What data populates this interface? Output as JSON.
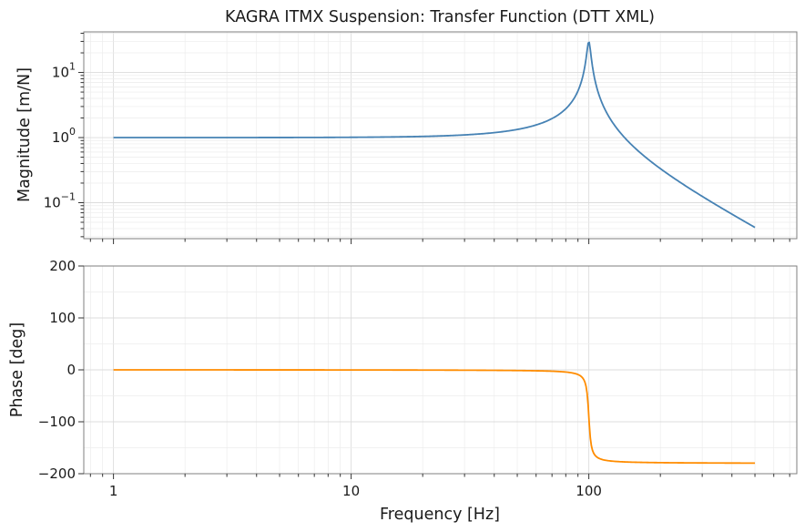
{
  "figure": {
    "title": "KAGRA ITMX Suspension: Transfer Function (DTT XML)"
  },
  "chart_data": [
    {
      "type": "line",
      "panel": "magnitude",
      "title": "KAGRA ITMX Suspension: Transfer Function (DTT XML)",
      "xlabel": "",
      "ylabel": "Magnitude [m/N]",
      "xscale": "log",
      "yscale": "log",
      "xlim": [
        0.75,
        750
      ],
      "ylim": [
        0.028,
        42
      ],
      "yticks": [
        {
          "value": 0.1,
          "base": "10",
          "exp": "−1"
        },
        {
          "value": 1,
          "base": "10",
          "exp": "0"
        },
        {
          "value": 10,
          "base": "10",
          "exp": "1"
        }
      ],
      "grid": true,
      "color": "#4682b4",
      "model": {
        "f0": 100,
        "Q": 30,
        "fmin": 1,
        "fmax": 500
      },
      "series": [
        {
          "values": [
            [
              1,
              1.0
            ],
            [
              2,
              1.0
            ],
            [
              5,
              1.0025
            ],
            [
              10,
              1.0101
            ],
            [
              20,
              1.0417
            ],
            [
              30,
              1.0989
            ],
            [
              50,
              1.3332
            ],
            [
              70,
              1.9577
            ],
            [
              80,
              2.7683
            ],
            [
              90,
              5.1853
            ],
            [
              95,
              9.7786
            ],
            [
              98,
              20.6
            ],
            [
              100,
              30.0
            ],
            [
              102,
              20.0
            ],
            [
              105,
              9.0
            ],
            [
              110,
              4.6969
            ],
            [
              120,
              2.2566
            ],
            [
              150,
              0.7983
            ],
            [
              200,
              0.3332
            ],
            [
              300,
              0.125
            ],
            [
              400,
              0.0666
            ],
            [
              500,
              0.0417
            ]
          ]
        }
      ]
    },
    {
      "type": "line",
      "panel": "phase",
      "title": "",
      "xlabel": "Frequency [Hz]",
      "ylabel": "Phase [deg]",
      "xscale": "log",
      "yscale": "linear",
      "xlim": [
        0.75,
        750
      ],
      "ylim": [
        -200,
        200
      ],
      "xticks": [
        {
          "value": 1,
          "label": "1"
        },
        {
          "value": 10,
          "label": "10"
        },
        {
          "value": 100,
          "label": "100"
        }
      ],
      "yticks": [
        {
          "value": -200,
          "label": "−200"
        },
        {
          "value": -100,
          "label": "−100"
        },
        {
          "value": 0,
          "label": "0"
        },
        {
          "value": 100,
          "label": "100"
        },
        {
          "value": 200,
          "label": "200"
        }
      ],
      "grid": true,
      "color": "#ff8c00",
      "model": {
        "f0": 100,
        "Q": 30,
        "fmin": 1,
        "fmax": 500
      },
      "series": [
        {
          "values": [
            [
              1,
              -0.19
            ],
            [
              10,
              -1.93
            ],
            [
              50,
              -4.4
            ],
            [
              80,
              -9.0
            ],
            [
              90,
              -16.6
            ],
            [
              95,
              -31.8
            ],
            [
              100,
              -90
            ],
            [
              105,
              -146.7
            ],
            [
              110,
              -166.5
            ],
            [
              150,
              -177.7
            ],
            [
              300,
              -179.3
            ],
            [
              500,
              -179.6
            ]
          ]
        }
      ]
    }
  ]
}
